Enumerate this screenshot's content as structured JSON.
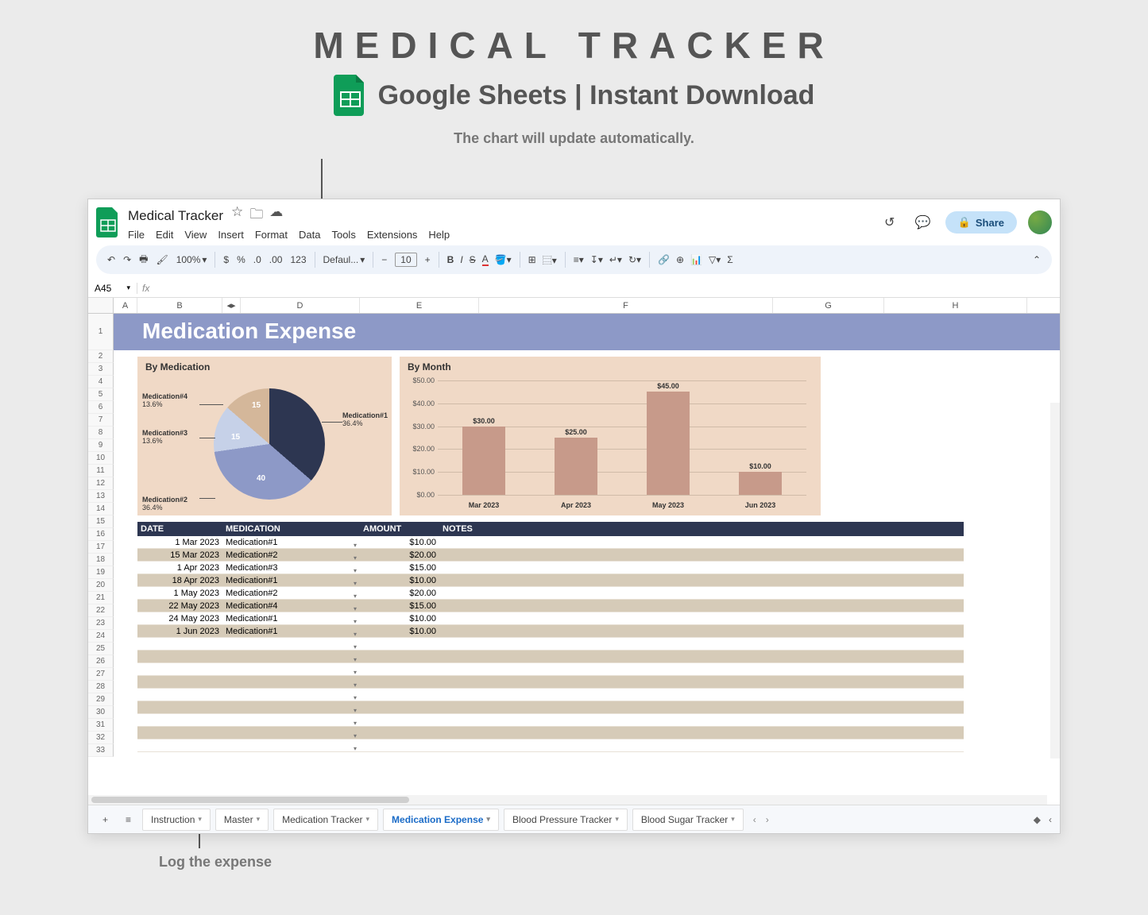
{
  "hero": {
    "title": "MEDICAL TRACKER",
    "subtitle": "Google Sheets | Instant Download"
  },
  "callouts": {
    "top": "The chart will update automatically.",
    "bottom": "Log the expense"
  },
  "doc": {
    "title": "Medical Tracker",
    "menus": [
      "File",
      "Edit",
      "View",
      "Insert",
      "Format",
      "Data",
      "Tools",
      "Extensions",
      "Help"
    ],
    "share_label": "Share"
  },
  "toolbar": {
    "zoom": "100%",
    "currency": "$",
    "percent": "%",
    "dec_dec": ".0",
    "dec_inc": ".00",
    "num_fmt": "123",
    "font": "Defaul...",
    "font_size": "10"
  },
  "namebox": {
    "cell": "A45",
    "fx": "fx"
  },
  "columns": [
    "A",
    "B",
    "",
    "D",
    "E",
    "F",
    "G",
    "H"
  ],
  "sheet": {
    "banner": "Medication Expense",
    "row_numbers": [
      "1",
      "2",
      "3",
      "4",
      "5",
      "6",
      "7",
      "8",
      "9",
      "10",
      "11",
      "12",
      "13",
      "14",
      "15",
      "16",
      "17",
      "18",
      "19",
      "20",
      "21",
      "22",
      "23",
      "24",
      "25",
      "26",
      "27",
      "28",
      "29",
      "30",
      "31",
      "32",
      "33"
    ]
  },
  "pie_chart": {
    "type": "pie",
    "title": "By Medication",
    "background_color": "#f0d9c6",
    "slices": [
      {
        "label": "Medication#1",
        "val": 40,
        "pct": "36.4%",
        "color": "#2d3651",
        "display": ""
      },
      {
        "label": "Medication#2",
        "val": 40,
        "pct": "36.4%",
        "color": "#8d99c7",
        "display": "40"
      },
      {
        "label": "Medication#3",
        "val": 15,
        "pct": "13.6%",
        "color": "#c6d1e8",
        "display": "15"
      },
      {
        "label": "Medication#4",
        "val": 15,
        "pct": "13.6%",
        "color": "#d4b79a",
        "display": "15"
      }
    ]
  },
  "bar_chart": {
    "type": "bar",
    "title": "By Month",
    "background_color": "#f0d9c6",
    "bar_color": "#c79a8a",
    "grid_color": "#d0bba8",
    "ylim": [
      0,
      50
    ],
    "ytick_step": 10,
    "yticks": [
      "$0.00",
      "$10.00",
      "$20.00",
      "$30.00",
      "$40.00",
      "$50.00"
    ],
    "bars": [
      {
        "label": "Mar 2023",
        "value": 30,
        "display": "$30.00"
      },
      {
        "label": "Apr 2023",
        "value": 25,
        "display": "$25.00"
      },
      {
        "label": "May 2023",
        "value": 45,
        "display": "$45.00"
      },
      {
        "label": "Jun 2023",
        "value": 10,
        "display": "$10.00"
      }
    ]
  },
  "table": {
    "headers": {
      "date": "DATE",
      "medication": "MEDICATION",
      "amount": "AMOUNT",
      "notes": "NOTES"
    },
    "rows": [
      {
        "date": "1 Mar 2023",
        "medication": "Medication#1",
        "amount": "$10.00",
        "notes": ""
      },
      {
        "date": "15 Mar 2023",
        "medication": "Medication#2",
        "amount": "$20.00",
        "notes": ""
      },
      {
        "date": "1 Apr 2023",
        "medication": "Medication#3",
        "amount": "$15.00",
        "notes": ""
      },
      {
        "date": "18 Apr 2023",
        "medication": "Medication#1",
        "amount": "$10.00",
        "notes": ""
      },
      {
        "date": "1 May 2023",
        "medication": "Medication#2",
        "amount": "$20.00",
        "notes": ""
      },
      {
        "date": "22 May 2023",
        "medication": "Medication#4",
        "amount": "$15.00",
        "notes": ""
      },
      {
        "date": "24 May 2023",
        "medication": "Medication#1",
        "amount": "$10.00",
        "notes": ""
      },
      {
        "date": "1 Jun 2023",
        "medication": "Medication#1",
        "amount": "$10.00",
        "notes": ""
      }
    ],
    "empty_rows": 9,
    "alt_color": "#d6cbb8",
    "header_bg": "#2d3651"
  },
  "tabs": {
    "list": [
      "Instruction",
      "Master",
      "Medication Tracker",
      "Medication Expense",
      "Blood Pressure Tracker",
      "Blood Sugar Tracker"
    ],
    "active": "Medication Expense"
  }
}
